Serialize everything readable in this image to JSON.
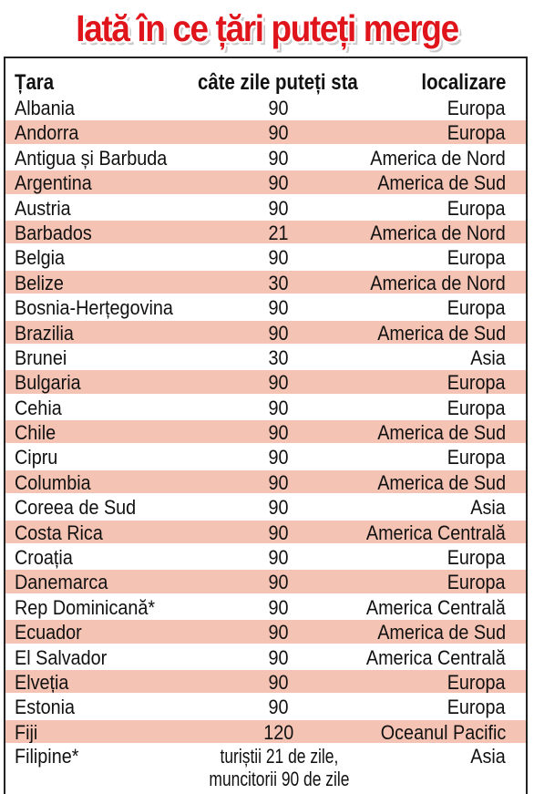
{
  "title": "Iată în ce țări puteți merge",
  "headers": {
    "country": "Țara",
    "days": "câte zile puteți sta",
    "location": "localizare"
  },
  "rows": [
    {
      "country": "Albania",
      "days": "90",
      "location": "Europa"
    },
    {
      "country": "Andorra",
      "days": "90",
      "location": "Europa"
    },
    {
      "country": "Antigua și Barbuda",
      "days": "90",
      "location": "America de Nord"
    },
    {
      "country": "Argentina",
      "days": "90",
      "location": "America de Sud"
    },
    {
      "country": "Austria",
      "days": "90",
      "location": "Europa"
    },
    {
      "country": "Barbados",
      "days": "21",
      "location": "America de Nord"
    },
    {
      "country": "Belgia",
      "days": "90",
      "location": "Europa"
    },
    {
      "country": "Belize",
      "days": "30",
      "location": "America de Nord"
    },
    {
      "country": "Bosnia-Herțegovina",
      "days": "90",
      "location": "Europa"
    },
    {
      "country": "Brazilia",
      "days": "90",
      "location": "America de Sud"
    },
    {
      "country": "Brunei",
      "days": "30",
      "location": "Asia"
    },
    {
      "country": "Bulgaria",
      "days": "90",
      "location": "Europa"
    },
    {
      "country": "Cehia",
      "days": "90",
      "location": "Europa"
    },
    {
      "country": "Chile",
      "days": "90",
      "location": "America de Sud"
    },
    {
      "country": "Cipru",
      "days": "90",
      "location": "Europa"
    },
    {
      "country": "Columbia",
      "days": "90",
      "location": "America de Sud"
    },
    {
      "country": "Coreea de Sud",
      "days": "90",
      "location": "Asia"
    },
    {
      "country": "Costa Rica",
      "days": "90",
      "location": "America Centrală"
    },
    {
      "country": "Croația",
      "days": "90",
      "location": "Europa"
    },
    {
      "country": "Danemarca",
      "days": "90",
      "location": "Europa"
    },
    {
      "country": "Rep Dominicană*",
      "days": "90",
      "location": "America Centrală"
    },
    {
      "country": "Ecuador",
      "days": "90",
      "location": "America de Sud"
    },
    {
      "country": "El Salvador",
      "days": "90",
      "location": "America Centrală"
    },
    {
      "country": "Elveția",
      "days": "90",
      "location": "Europa"
    },
    {
      "country": "Estonia",
      "days": "90",
      "location": "Europa"
    },
    {
      "country": "Fiji",
      "days": "120",
      "location": "Oceanul Pacific"
    }
  ],
  "last_row": {
    "country": "Filipine*",
    "days_line1": "turiștii 21 de zile,",
    "days_line2": "muncitorii 90 de zile",
    "location": "Asia"
  },
  "colors": {
    "title": "#e0141b",
    "row_shade": "#f4c3b3",
    "border": "#222222"
  }
}
